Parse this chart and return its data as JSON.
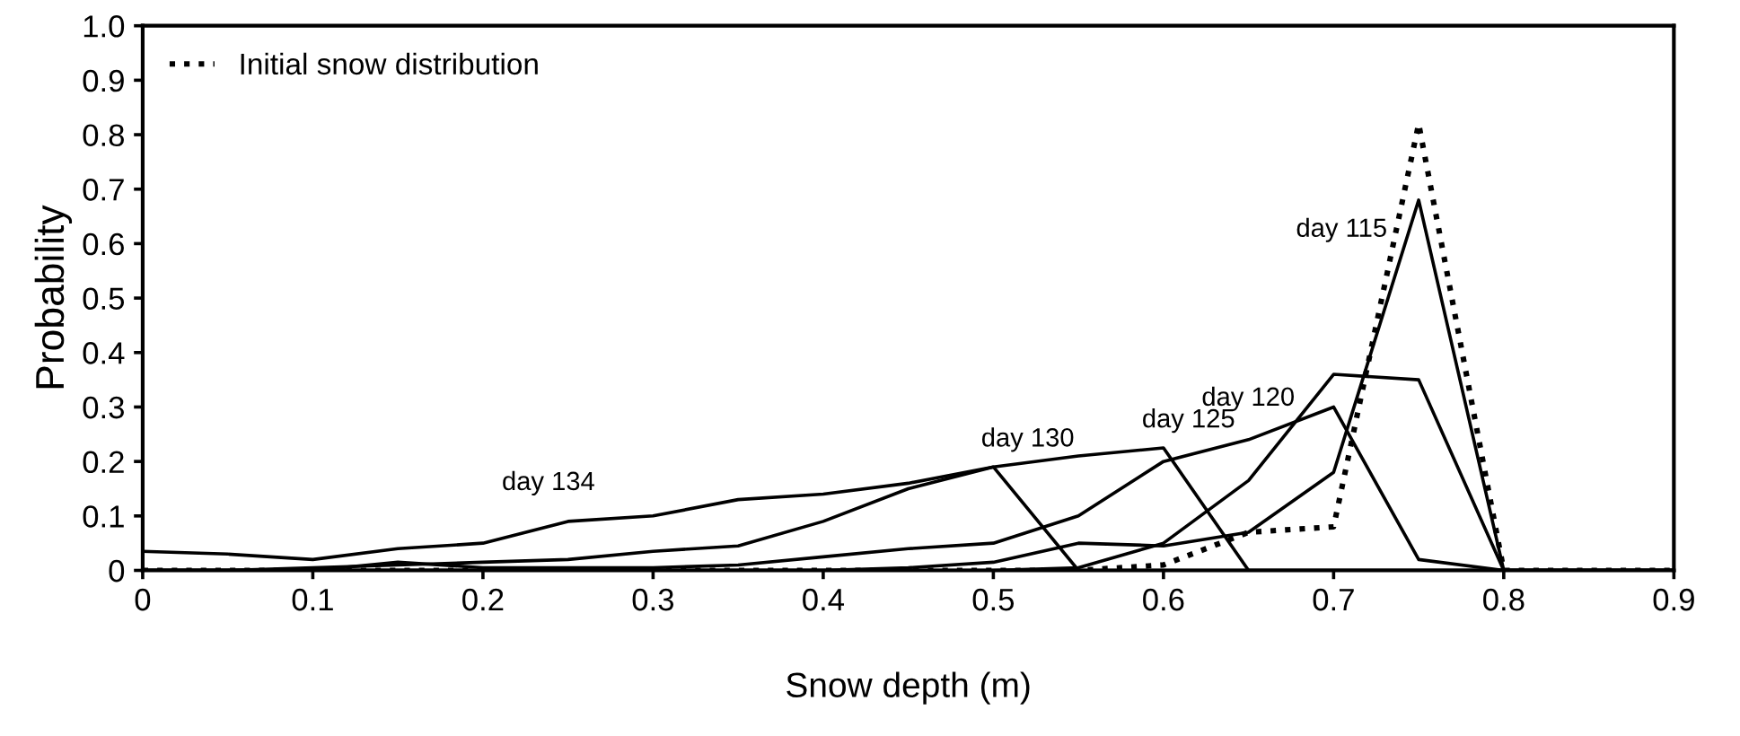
{
  "chart_data": {
    "type": "line",
    "xlabel": "Snow depth (m)",
    "ylabel": "Probability",
    "x": [
      0,
      0.05,
      0.1,
      0.15,
      0.2,
      0.25,
      0.3,
      0.35,
      0.4,
      0.45,
      0.5,
      0.55,
      0.6,
      0.65,
      0.7,
      0.75,
      0.8,
      0.85,
      0.9
    ],
    "series": [
      {
        "name": "Initial snow distribution",
        "color": "#000000",
        "line_style": "dotted",
        "values": [
          0,
          0,
          0,
          0,
          0,
          0,
          0,
          0,
          0,
          0,
          0,
          0,
          0.01,
          0.07,
          0.08,
          0.82,
          0,
          0,
          0
        ]
      },
      {
        "color": "#000000",
        "values": [
          0,
          0,
          0,
          0,
          0,
          0,
          0,
          0,
          0,
          0.005,
          0.015,
          0.05,
          0.045,
          0.07,
          0.18,
          0.68,
          0,
          0,
          0
        ]
      },
      {
        "color": "#000000",
        "values": [
          0,
          0,
          0,
          0,
          0,
          0,
          0,
          0,
          0,
          0,
          0,
          0.005,
          0.05,
          0.165,
          0.36,
          0.35,
          0,
          0,
          0
        ]
      },
      {
        "color": "#000000",
        "values": [
          0,
          0,
          0,
          0.015,
          0.005,
          0.005,
          0.005,
          0.01,
          0.025,
          0.04,
          0.05,
          0.1,
          0.2,
          0.24,
          0.3,
          0.02,
          0,
          0,
          0
        ]
      },
      {
        "color": "#000000",
        "values": [
          0,
          0,
          0.005,
          0.01,
          0.015,
          0.02,
          0.035,
          0.045,
          0.09,
          0.15,
          0.19,
          0.21,
          0.225,
          0,
          0,
          0,
          0,
          0,
          0
        ]
      },
      {
        "color": "#000000",
        "values": [
          0.035,
          0.03,
          0.02,
          0.04,
          0.05,
          0.09,
          0.1,
          0.13,
          0.14,
          0.16,
          0.19,
          0,
          0,
          0,
          0,
          0,
          0,
          0,
          0
        ]
      }
    ],
    "annotations": [
      "day 115",
      "day 120",
      "day 125",
      "day 130",
      "day 134"
    ],
    "xlim": [
      0,
      0.9
    ],
    "xticks": [
      0,
      0.1,
      0.2,
      0.3,
      0.4,
      0.5,
      0.6,
      0.7,
      0.8,
      0.9
    ],
    "ylim": [
      0,
      1.0
    ],
    "yticks": [
      {
        "value": 0,
        "label": "0"
      },
      0.1,
      0.2,
      0.3,
      0.4,
      0.5,
      0.6,
      0.7,
      0.8,
      0.9,
      {
        "value": 1.0,
        "label": "1.0"
      }
    ],
    "grid": false,
    "legend": "top left",
    "marker": "none",
    "line_style": "solid"
  }
}
